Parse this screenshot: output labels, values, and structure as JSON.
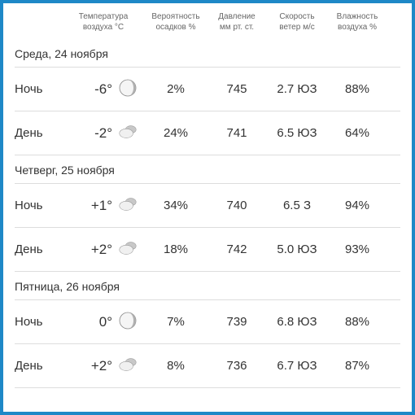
{
  "border_color": "#1e88c7",
  "columns": {
    "time": "",
    "temp": "Температура\nвоздуха °C",
    "precip": "Вероятность\nосадков %",
    "pressure": "Давление\nмм рт. ст.",
    "wind": "Скорость\nветер м/с",
    "humidity": "Влажность\nвоздуха %"
  },
  "days": [
    {
      "label": "Среда, 24 ноября",
      "rows": [
        {
          "time": "Ночь",
          "temp": "-6°",
          "icon": "moon",
          "precip": "2%",
          "pressure": "745",
          "wind": "2.7 ЮЗ",
          "humidity": "88%"
        },
        {
          "time": "День",
          "temp": "-2°",
          "icon": "cloud",
          "precip": "24%",
          "pressure": "741",
          "wind": "6.5 ЮЗ",
          "humidity": "64%"
        }
      ]
    },
    {
      "label": "Четверг, 25 ноября",
      "rows": [
        {
          "time": "Ночь",
          "temp": "+1°",
          "icon": "cloud",
          "precip": "34%",
          "pressure": "740",
          "wind": "6.5 З",
          "humidity": "94%"
        },
        {
          "time": "День",
          "temp": "+2°",
          "icon": "cloud",
          "precip": "18%",
          "pressure": "742",
          "wind": "5.0 ЮЗ",
          "humidity": "93%"
        }
      ]
    },
    {
      "label": "Пятница, 26 ноября",
      "rows": [
        {
          "time": "Ночь",
          "temp": "0°",
          "icon": "moon",
          "precip": "7%",
          "pressure": "739",
          "wind": "6.8 ЮЗ",
          "humidity": "88%"
        },
        {
          "time": "День",
          "temp": "+2°",
          "icon": "cloud",
          "precip": "8%",
          "pressure": "736",
          "wind": "6.7 ЮЗ",
          "humidity": "87%"
        }
      ]
    }
  ],
  "icons": {
    "moon_fill": "#b0b0b0",
    "moon_stroke": "#888",
    "cloud_fill_light": "#f0f0f0",
    "cloud_fill_dark": "#c8c8c8",
    "cloud_stroke": "#999"
  },
  "styling": {
    "header_color": "#666",
    "text_color": "#333",
    "divider_color": "#ddd",
    "background": "#ffffff",
    "header_fontsize": 10,
    "data_fontsize": 15,
    "temp_fontsize": 17,
    "dayheader_fontsize": 14
  }
}
